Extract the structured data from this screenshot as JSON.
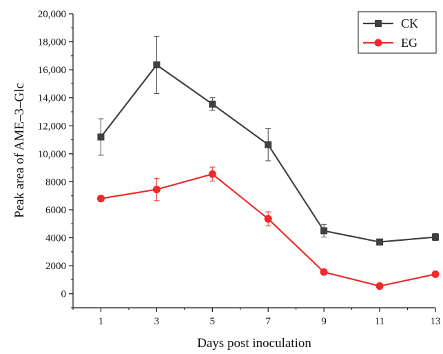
{
  "chart_data": {
    "type": "line",
    "title": "",
    "xlabel": "Days post inoculation",
    "ylabel": "Peak area of AME–3–Glc",
    "x": [
      1,
      3,
      5,
      7,
      9,
      11,
      13
    ],
    "x_tick_labels": [
      "1",
      "3",
      "5",
      "7",
      "9",
      "11",
      "13"
    ],
    "xlim": [
      0,
      13
    ],
    "ylim": [
      -1000,
      20000
    ],
    "y_ticks": [
      0,
      2000,
      4000,
      6000,
      8000,
      10000,
      12000,
      14000,
      16000,
      18000,
      20000
    ],
    "y_tick_labels": [
      "0",
      "2000",
      "4000",
      "6000",
      "8000",
      "10,000",
      "12,000",
      "14,000",
      "16,000",
      "18,000",
      "20,000"
    ],
    "grid": false,
    "legend_position": "top-right",
    "series": [
      {
        "name": "CK",
        "color": "#404040",
        "marker": "square",
        "values": [
          11200,
          16350,
          13550,
          10650,
          4500,
          3700,
          4050
        ],
        "errors": [
          1300,
          2050,
          450,
          1150,
          450,
          150,
          250
        ]
      },
      {
        "name": "EG",
        "color": "#ee2a2a",
        "marker": "circle",
        "values": [
          6800,
          7450,
          8550,
          5350,
          1550,
          550,
          1400
        ],
        "errors": [
          200,
          800,
          500,
          500,
          100,
          100,
          150
        ]
      }
    ]
  }
}
